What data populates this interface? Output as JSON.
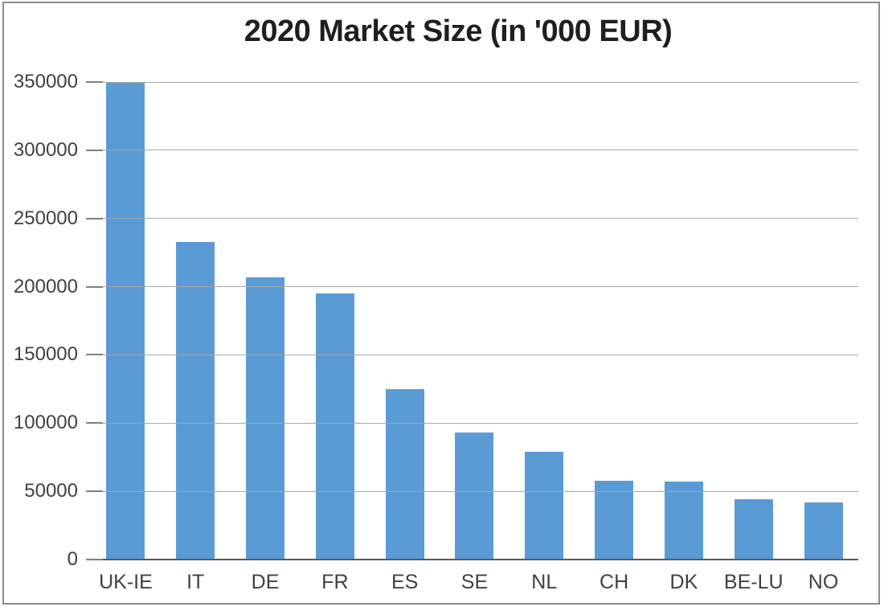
{
  "title": "2020 Market Size (in '000 EUR)",
  "colors": {
    "bar": "#5b9bd5",
    "gridline": "#a6a6a6",
    "tick": "#7f7f7f",
    "axis_line": "#595959",
    "label_text": "#404040",
    "title_text": "#1f1f1f",
    "frame_border": "#8c8c8c",
    "background": "#ffffff"
  },
  "chart_data": {
    "type": "bar",
    "title": "2020 Market Size (in '000 EUR)",
    "categories": [
      "UK-IE",
      "IT",
      "DE",
      "FR",
      "ES",
      "SE",
      "NL",
      "CH",
      "DK",
      "BE-LU",
      "NO"
    ],
    "values": [
      350000,
      233000,
      207000,
      195000,
      125000,
      93000,
      79000,
      58000,
      57000,
      44000,
      42000
    ],
    "xlabel": "",
    "ylabel": "",
    "ylim": [
      0,
      350000
    ],
    "yticks": [
      0,
      50000,
      100000,
      150000,
      200000,
      250000,
      300000,
      350000
    ],
    "ytick_labels": [
      "0",
      "50000",
      "100000",
      "150000",
      "200000",
      "250000",
      "300000",
      "350000"
    ],
    "grid": true,
    "legend": false,
    "bar_color": "#5b9bd5"
  }
}
